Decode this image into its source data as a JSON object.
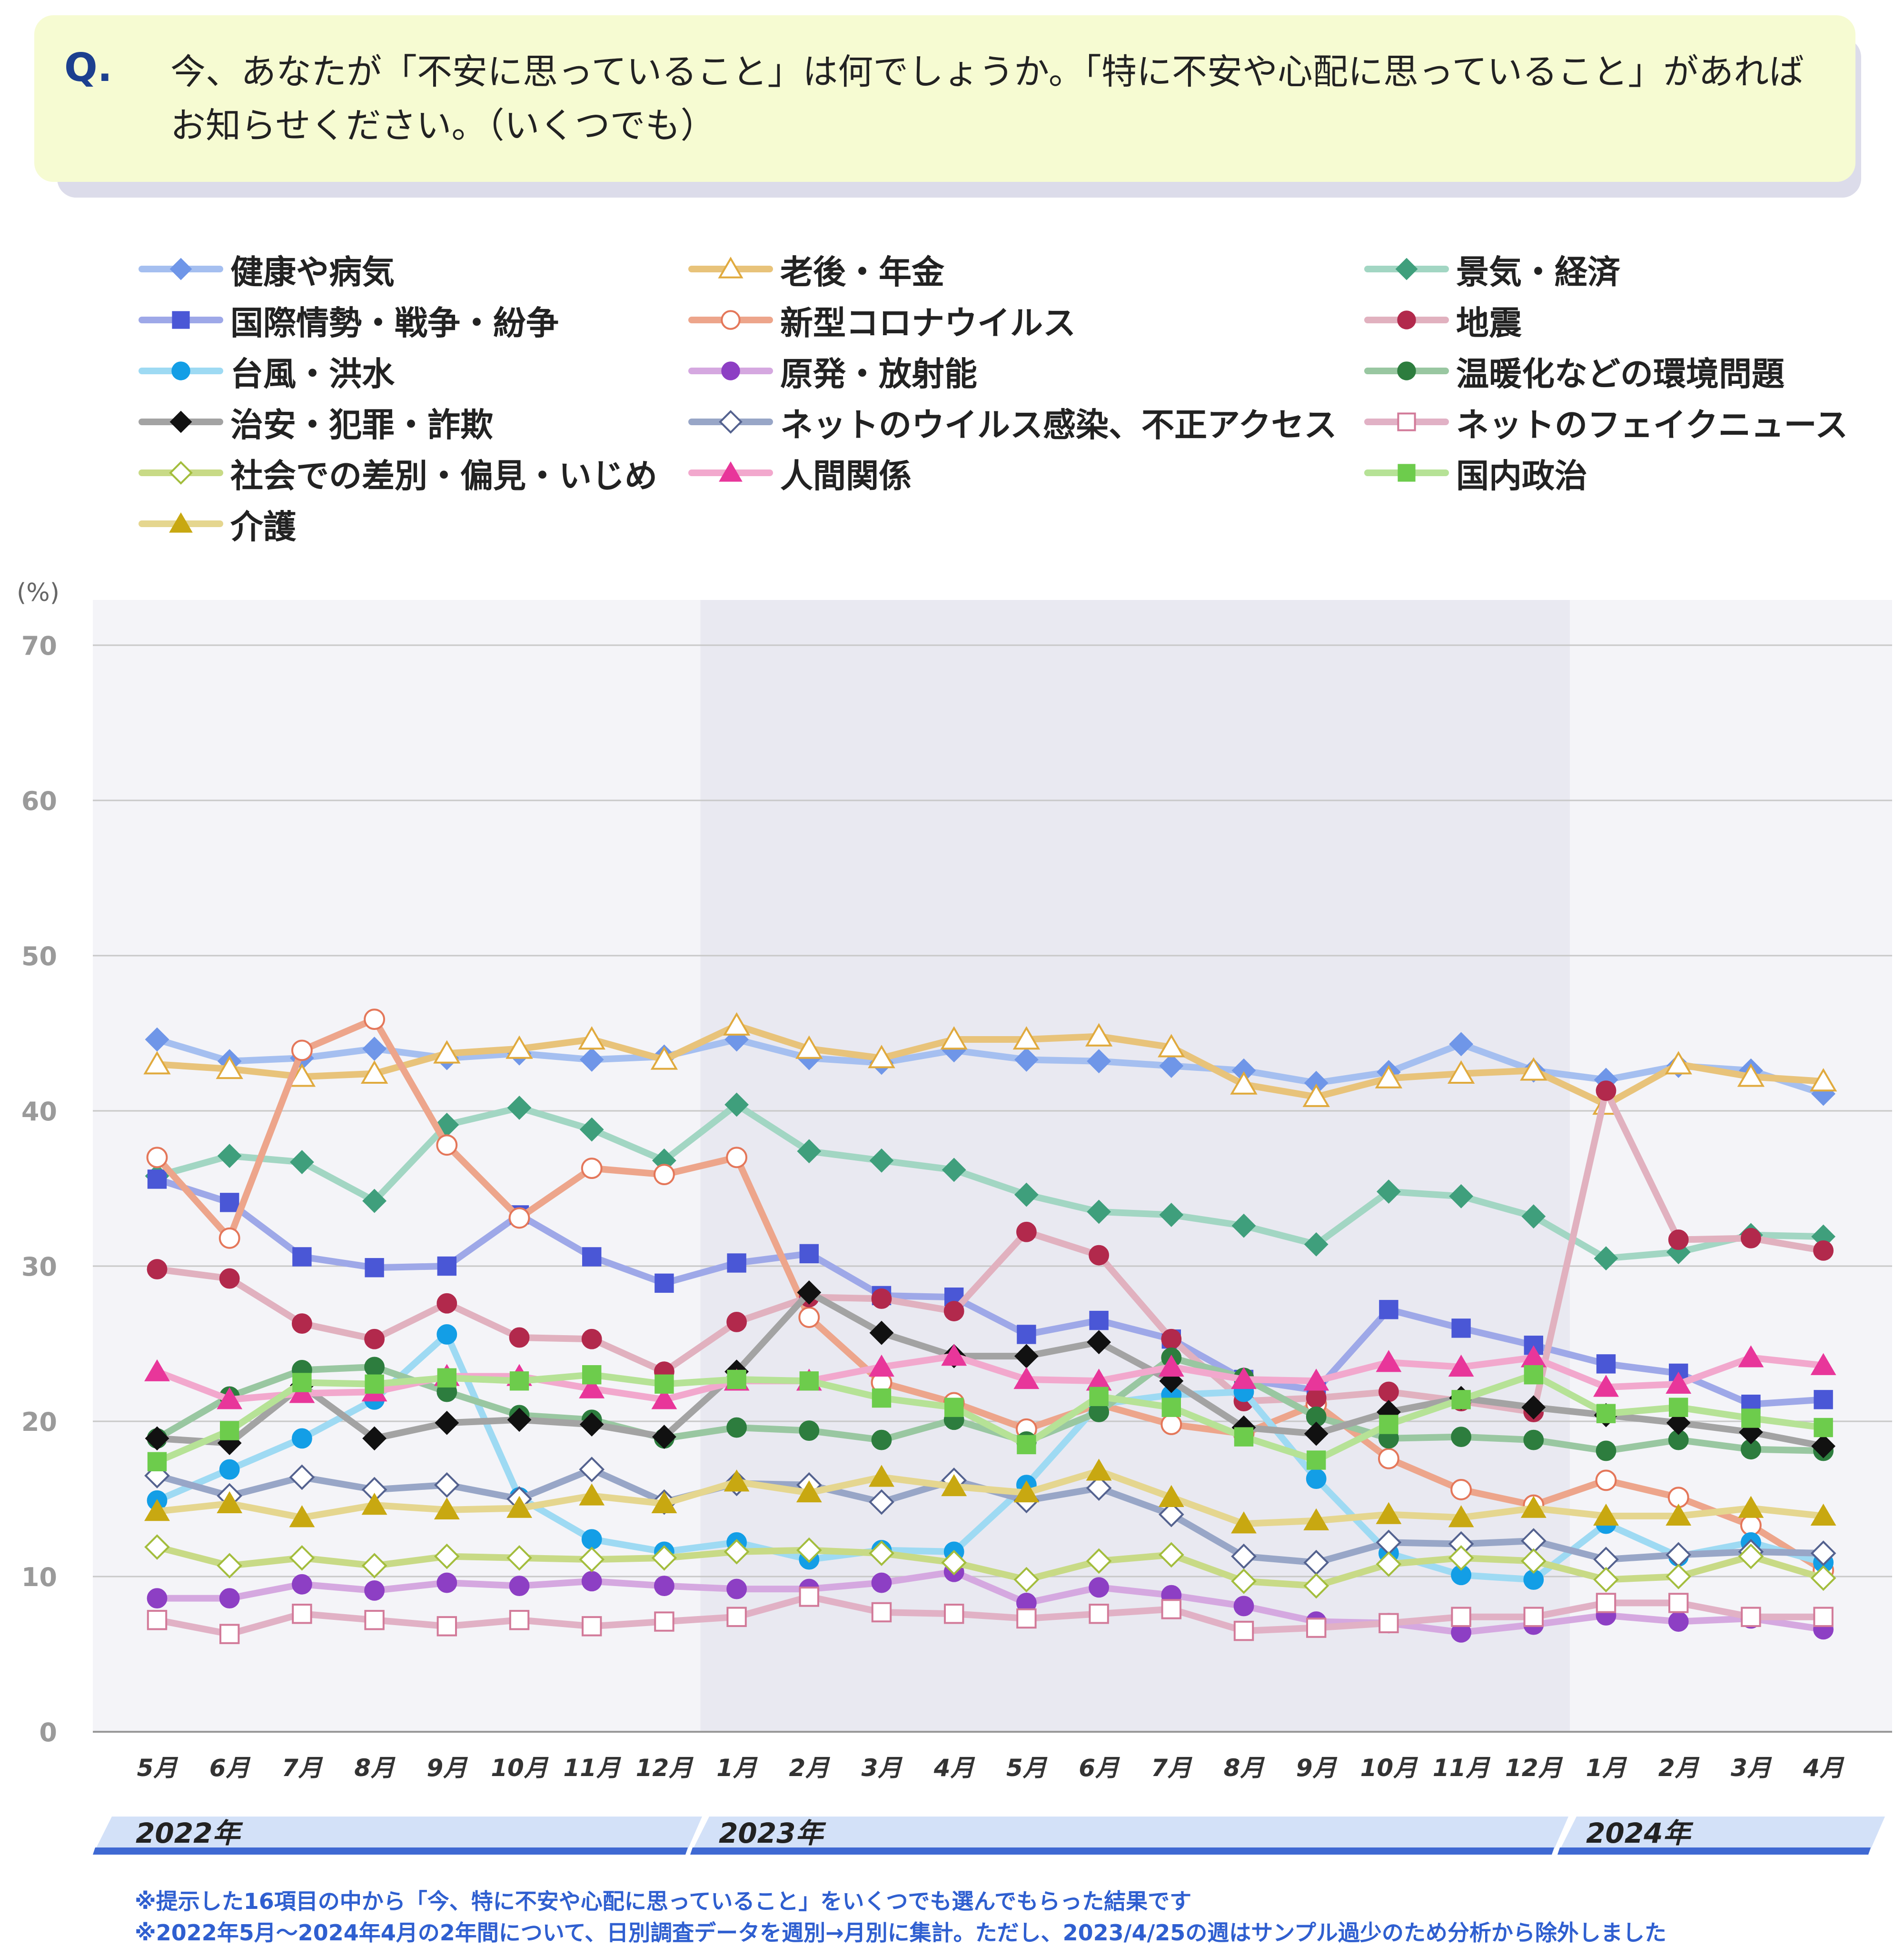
{
  "question": {
    "mark": "Q.",
    "text": "今、あなたが「不安に思っていること」は何でしょうか。「特に不安や心配に思っていること」があればお知らせください。（いくつでも）"
  },
  "chart_data": {
    "type": "line",
    "ylabel": "(%)",
    "ylim": [
      0,
      70
    ],
    "yticks": [
      0,
      10,
      20,
      30,
      40,
      50,
      60,
      70
    ],
    "grid": true,
    "legend_position": "top",
    "categories": [
      "5月",
      "6月",
      "7月",
      "8月",
      "9月",
      "10月",
      "11月",
      "12月",
      "1月",
      "2月",
      "3月",
      "4月",
      "5月",
      "6月",
      "7月",
      "8月",
      "9月",
      "10月",
      "11月",
      "12月",
      "1月",
      "2月",
      "3月",
      "4月"
    ],
    "years": [
      {
        "label": "2022年",
        "start": 0,
        "end": 7
      },
      {
        "label": "2023年",
        "start": 8,
        "end": 19
      },
      {
        "label": "2024年",
        "start": 20,
        "end": 23
      }
    ],
    "series": [
      {
        "name": "健康や病気",
        "color": "#a5bff0",
        "marker": "diamond",
        "markerColor": "#6f96e8",
        "filled": true,
        "values": [
          44.6,
          43.2,
          43.4,
          44.0,
          43.4,
          43.7,
          43.3,
          43.5,
          44.6,
          43.4,
          43.1,
          43.9,
          43.3,
          43.2,
          42.9,
          42.6,
          41.8,
          42.5,
          44.3,
          42.6,
          42.0,
          42.9,
          42.6,
          41.1
        ]
      },
      {
        "name": "老後・年金",
        "color": "#e8c37a",
        "marker": "triangle",
        "markerColor": "#e0aa3e",
        "filled": false,
        "values": [
          43.0,
          42.7,
          42.2,
          42.4,
          43.7,
          44.0,
          44.6,
          43.3,
          45.5,
          44.0,
          43.4,
          44.6,
          44.6,
          44.8,
          44.1,
          41.7,
          40.9,
          42.1,
          42.4,
          42.6,
          40.4,
          43.0,
          42.2,
          41.9
        ]
      },
      {
        "name": "景気・経済",
        "color": "#a2d6c3",
        "marker": "diamond",
        "markerColor": "#3f9f7c",
        "filled": true,
        "values": [
          35.8,
          37.1,
          36.7,
          34.2,
          39.1,
          40.2,
          38.8,
          36.8,
          40.4,
          37.4,
          36.8,
          36.2,
          34.6,
          33.5,
          33.3,
          32.6,
          31.4,
          34.8,
          34.5,
          33.2,
          30.5,
          30.9,
          32.0,
          31.9
        ]
      },
      {
        "name": "国際情勢・戦争・紛争",
        "color": "#9ea8e8",
        "marker": "square",
        "markerColor": "#4a57d6",
        "filled": true,
        "values": [
          35.6,
          34.1,
          30.6,
          29.9,
          30.0,
          33.3,
          30.6,
          28.9,
          30.2,
          30.8,
          28.1,
          28.0,
          25.6,
          26.5,
          25.3,
          22.7,
          22.0,
          27.2,
          26.0,
          24.9,
          23.7,
          23.1,
          21.1,
          21.4
        ]
      },
      {
        "name": "新型コロナウイルス",
        "color": "#eda58b",
        "marker": "circle",
        "markerColor": "#e4775a",
        "filled": false,
        "values": [
          37.0,
          31.8,
          43.9,
          45.9,
          37.8,
          33.1,
          36.3,
          35.9,
          37.0,
          26.7,
          22.5,
          21.2,
          19.5,
          21.1,
          19.8,
          19.2,
          21.1,
          17.6,
          15.6,
          14.6,
          16.2,
          15.1,
          13.3,
          10.4
        ]
      },
      {
        "name": "地震",
        "color": "#e1b1bf",
        "marker": "circle",
        "markerColor": "#b2294c",
        "filled": true,
        "values": [
          29.8,
          29.2,
          26.3,
          25.3,
          27.6,
          25.4,
          25.3,
          23.2,
          26.4,
          28.0,
          27.9,
          27.1,
          32.2,
          30.7,
          25.3,
          21.3,
          21.5,
          21.9,
          21.3,
          20.6,
          41.3,
          31.7,
          31.8,
          31.0
        ]
      },
      {
        "name": "台風・洪水",
        "color": "#9edaf3",
        "marker": "circle",
        "markerColor": "#139ee6",
        "filled": true,
        "values": [
          14.9,
          16.9,
          18.9,
          21.4,
          25.6,
          15.1,
          12.4,
          11.6,
          12.2,
          11.1,
          11.7,
          11.6,
          15.9,
          21.1,
          21.7,
          21.9,
          16.3,
          11.5,
          10.1,
          9.8,
          13.4,
          11.3,
          12.2,
          10.9
        ]
      },
      {
        "name": "原発・放射能",
        "color": "#d5a8e0",
        "marker": "circle",
        "markerColor": "#8d3fc4",
        "filled": true,
        "values": [
          8.6,
          8.6,
          9.5,
          9.1,
          9.6,
          9.4,
          9.7,
          9.4,
          9.2,
          9.2,
          9.6,
          10.3,
          8.3,
          9.3,
          8.8,
          8.1,
          7.1,
          7.0,
          6.4,
          6.9,
          7.5,
          7.1,
          7.3,
          6.6
        ]
      },
      {
        "name": "温暖化などの環境問題",
        "color": "#99c7a1",
        "marker": "circle",
        "markerColor": "#2d7d3e",
        "filled": true,
        "values": [
          18.9,
          21.6,
          23.3,
          23.5,
          21.9,
          20.4,
          20.1,
          18.9,
          19.6,
          19.4,
          18.8,
          20.1,
          18.7,
          20.6,
          24.1,
          22.8,
          20.3,
          18.9,
          19.0,
          18.8,
          18.1,
          18.8,
          18.2,
          18.1
        ]
      },
      {
        "name": "治安・犯罪・詐欺",
        "color": "#a3a3a3",
        "marker": "diamond",
        "markerColor": "#111111",
        "filled": true,
        "values": [
          18.9,
          18.6,
          22.3,
          18.9,
          19.9,
          20.1,
          19.8,
          19.0,
          23.2,
          28.3,
          25.7,
          24.2,
          24.2,
          25.1,
          22.6,
          19.6,
          19.2,
          20.6,
          21.5,
          20.9,
          20.4,
          19.9,
          19.3,
          18.4
        ]
      },
      {
        "name": "ネットのウイルス感染、不正アクセス",
        "color": "#98a6c7",
        "marker": "diamond",
        "markerColor": "#54628f",
        "filled": false,
        "values": [
          16.5,
          15.2,
          16.4,
          15.6,
          15.9,
          15.0,
          16.9,
          14.8,
          16.0,
          15.9,
          14.8,
          16.2,
          14.9,
          15.7,
          14.0,
          11.3,
          10.9,
          12.2,
          12.1,
          12.3,
          11.1,
          11.4,
          11.6,
          11.5
        ]
      },
      {
        "name": "ネットのフェイクニュース",
        "color": "#e1b1c5",
        "marker": "square",
        "markerColor": "#d27a99",
        "filled": false,
        "values": [
          7.2,
          6.3,
          7.6,
          7.2,
          6.8,
          7.2,
          6.8,
          7.1,
          7.4,
          8.7,
          7.7,
          7.6,
          7.3,
          7.6,
          7.9,
          6.5,
          6.7,
          7.0,
          7.4,
          7.4,
          8.3,
          8.3,
          7.4,
          7.4
        ]
      },
      {
        "name": "社会での差別・偏見・いじめ",
        "color": "#c8da86",
        "marker": "diamond",
        "markerColor": "#a3bd3d",
        "filled": false,
        "values": [
          11.9,
          10.7,
          11.2,
          10.7,
          11.3,
          11.2,
          11.1,
          11.2,
          11.6,
          11.7,
          11.5,
          10.9,
          9.8,
          11.0,
          11.4,
          9.7,
          9.4,
          10.8,
          11.2,
          11.0,
          9.8,
          10.0,
          11.3,
          9.9
        ]
      },
      {
        "name": "人間関係",
        "color": "#f2a8cd",
        "marker": "triangle",
        "markerColor": "#e8369a",
        "filled": true,
        "values": [
          23.2,
          21.4,
          21.8,
          21.9,
          22.9,
          22.9,
          22.1,
          21.4,
          22.6,
          22.6,
          23.5,
          24.2,
          22.7,
          22.6,
          23.5,
          22.7,
          22.6,
          23.8,
          23.5,
          24.1,
          22.2,
          22.4,
          24.1,
          23.6
        ]
      },
      {
        "name": "国内政治",
        "color": "#b6e296",
        "marker": "square",
        "markerColor": "#6dcc4c",
        "filled": true,
        "values": [
          17.4,
          19.4,
          22.5,
          22.4,
          22.8,
          22.6,
          23.0,
          22.4,
          22.7,
          22.6,
          21.5,
          20.9,
          18.5,
          21.6,
          20.9,
          19.0,
          17.5,
          19.8,
          21.4,
          23.0,
          20.5,
          20.9,
          20.2,
          19.6
        ]
      },
      {
        "name": "介護",
        "color": "#e5d68f",
        "marker": "triangle",
        "markerColor": "#c8a811",
        "filled": true,
        "values": [
          14.2,
          14.7,
          13.8,
          14.6,
          14.3,
          14.4,
          15.2,
          14.7,
          16.1,
          15.4,
          16.4,
          15.8,
          15.4,
          16.8,
          15.1,
          13.4,
          13.6,
          14.0,
          13.8,
          14.4,
          13.9,
          13.9,
          14.4,
          13.9
        ]
      }
    ]
  },
  "notes": [
    "※提示した16項目の中から「今、特に不安や心配に思っていること」をいくつでも選んでもらった結果です",
    "※2022年5月～2024年4月の2年間について、日別調査データを週別→月別に集計。ただし、2023/4/25の週はサンプル過少のため分析から除外しました"
  ]
}
